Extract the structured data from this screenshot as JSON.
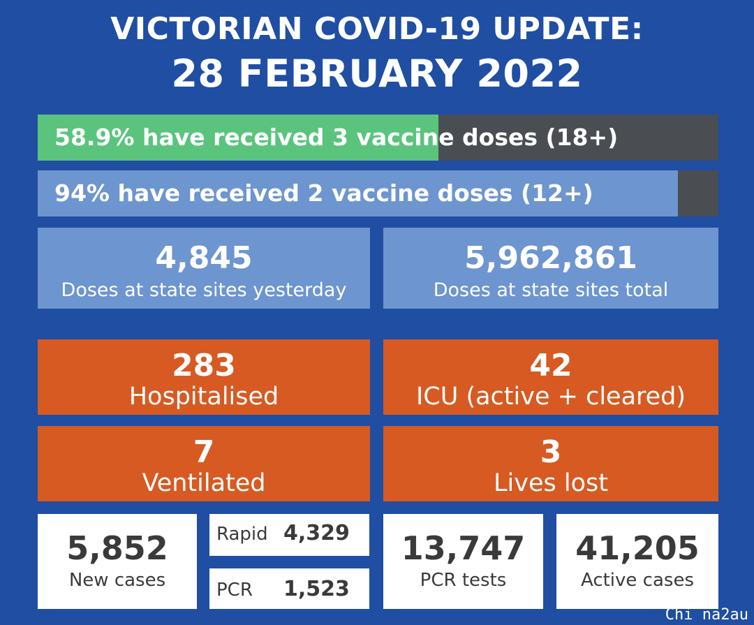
{
  "header": {
    "title_line1": "VICTORIAN COVID-19 UPDATE:",
    "title_line2": "28 FEBRUARY 2022"
  },
  "vaccination": [
    {
      "text": "58.9% have received 3 vaccine doses (18+)",
      "progress": 0.589,
      "fill_color": "#5ac47d"
    },
    {
      "text": "94% have received 2 vaccine doses (12+)",
      "progress": 0.94,
      "fill_color": "#6d95cf"
    }
  ],
  "doses": {
    "yesterday": {
      "value": "4,845",
      "label": "Doses at state sites yesterday"
    },
    "total": {
      "value": "5,962,861",
      "label": "Doses at state sites total"
    }
  },
  "hospital": {
    "hospitalised": {
      "value": "283",
      "label": "Hospitalised"
    },
    "icu": {
      "value": "42",
      "label": "ICU (active + cleared)"
    },
    "ventilated": {
      "value": "7",
      "label": "Ventilated"
    },
    "lives_lost": {
      "value": "3",
      "label": "Lives lost"
    }
  },
  "cases": {
    "new_cases": {
      "value": "5,852",
      "label": "New cases"
    },
    "rapid": {
      "label": "Rapid",
      "value": "4,329"
    },
    "pcr": {
      "label": "PCR",
      "value": "1,523"
    },
    "pcr_tests": {
      "value": "13,747",
      "label": "PCR tests"
    },
    "active_cases": {
      "value": "41,205",
      "label": "Active cases"
    }
  },
  "watermark": "Chi na2au",
  "colors": {
    "background": "#1f4ea3",
    "light_blue": "#6d95cf",
    "green": "#5ac47d",
    "orange": "#d65a22",
    "dark_gray": "#4a4d52"
  }
}
